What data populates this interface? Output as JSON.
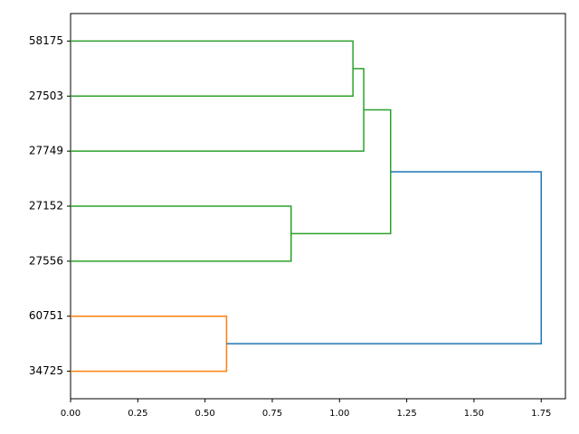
{
  "chart_data": {
    "type": "dendrogram",
    "leaves": [
      "58175",
      "27503",
      "27749",
      "27152",
      "27556",
      "60751",
      "34725"
    ],
    "links": [
      {
        "left": 0,
        "right": 1,
        "height": 1.05,
        "color": "#2ca02c"
      },
      {
        "left": 7,
        "right": 2,
        "height": 1.09,
        "color": "#2ca02c"
      },
      {
        "left": 3,
        "right": 4,
        "height": 0.82,
        "color": "#2ca02c"
      },
      {
        "left": 8,
        "right": 9,
        "height": 1.19,
        "color": "#2ca02c"
      },
      {
        "left": 5,
        "right": 6,
        "height": 0.58,
        "color": "#ff7f0e"
      },
      {
        "left": 10,
        "right": 11,
        "height": 1.75,
        "color": "#1f77b4"
      }
    ],
    "xlim": [
      0,
      1.84
    ],
    "xticks": [
      {
        "value": 0,
        "label": "0.00"
      },
      {
        "value": 0.25,
        "label": "0.25"
      },
      {
        "value": 0.5,
        "label": "0.50"
      },
      {
        "value": 0.75,
        "label": "0.75"
      },
      {
        "value": 1,
        "label": "1.00"
      },
      {
        "value": 1.25,
        "label": "1.25"
      },
      {
        "value": 1.5,
        "label": "1.50"
      },
      {
        "value": 1.75,
        "label": "1.75"
      }
    ]
  }
}
